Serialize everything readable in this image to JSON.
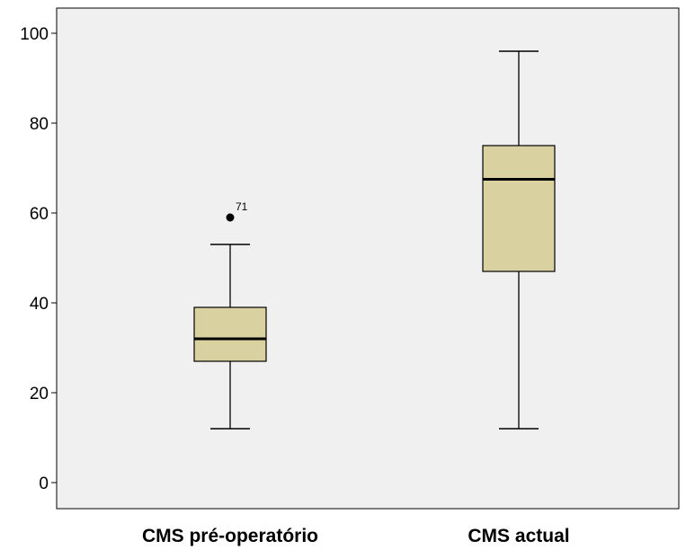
{
  "chart_data": {
    "type": "boxplot",
    "ylim": [
      -5,
      105
    ],
    "y_ticks": [
      0,
      20,
      40,
      60,
      80,
      100
    ],
    "grid": false,
    "colors": {
      "plot_background": "#f0f0f0",
      "box_fill": "#d9d1a0",
      "stroke": "#000000"
    },
    "boxes": [
      {
        "category": "CMS pré-operatório",
        "min": 12,
        "q1": 27,
        "median": 32,
        "q3": 39,
        "max": 53,
        "outliers": [
          {
            "value": 59,
            "label": "71"
          }
        ]
      },
      {
        "category": "CMS actual",
        "min": 12,
        "q1": 47,
        "median": 67.5,
        "q3": 75,
        "max": 96,
        "outliers": []
      }
    ]
  }
}
